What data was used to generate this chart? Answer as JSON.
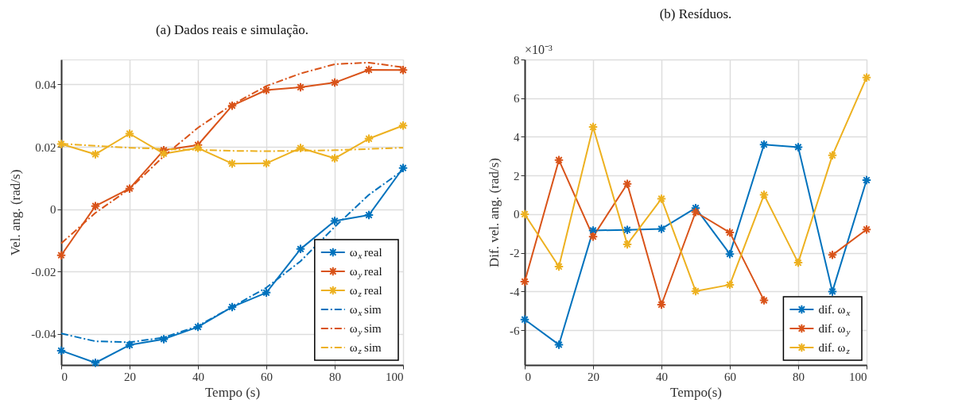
{
  "chart_data": [
    {
      "type": "line",
      "title": "(a) Dados reais e simulação.",
      "xlabel": "Tempo (s)",
      "ylabel": "Vel. ang. (rad/s)",
      "x": [
        0,
        10,
        20,
        30,
        40,
        50,
        60,
        70,
        80,
        90,
        100
      ],
      "xlim": [
        0,
        100
      ],
      "xticks": [
        0,
        20,
        40,
        60,
        80,
        100
      ],
      "ylim": [
        -0.05,
        0.048
      ],
      "yticks": [
        -0.04,
        -0.02,
        0,
        0.02,
        0.04
      ],
      "grid": true,
      "legend": "bottom right",
      "series": [
        {
          "name": "ω$_{x}$ real",
          "color": "#0072bd",
          "marker": "cross",
          "line_style": "solid",
          "values": [
            -0.0454,
            -0.0493,
            -0.0436,
            -0.0417,
            -0.0378,
            -0.0314,
            -0.0268,
            -0.0128,
            -0.0038,
            -0.0019,
            0.0132
          ]
        },
        {
          "name": "ω$_{y}$ real",
          "color": "#d95319",
          "marker": "cross",
          "line_style": "solid",
          "values": [
            -0.0148,
            0.001,
            0.0066,
            0.0189,
            0.0206,
            0.0332,
            0.0382,
            0.0391,
            0.0406,
            0.0447,
            0.0446
          ]
        },
        {
          "name": "ω$_{z}$ real",
          "color": "#edb120",
          "marker": "cross",
          "line_style": "solid",
          "values": [
            0.0209,
            0.0176,
            0.0242,
            0.0178,
            0.0196,
            0.0146,
            0.0147,
            0.0196,
            0.0163,
            0.0226,
            0.0268
          ]
        },
        {
          "name": "ω$_{x}$ sim",
          "color": "#0072bd",
          "marker": "none",
          "line_style": "dashed",
          "values": [
            -0.0399,
            -0.0424,
            -0.0427,
            -0.0412,
            -0.0375,
            -0.0314,
            -0.0252,
            -0.0167,
            -0.0057,
            0.0046,
            0.0125
          ]
        },
        {
          "name": "ω$_{y}$ sim",
          "color": "#d95319",
          "marker": "none",
          "line_style": "dashed",
          "values": [
            -0.011,
            -0.0012,
            0.0065,
            0.017,
            0.0261,
            0.0335,
            0.0395,
            0.0435,
            0.0465,
            0.047,
            0.0455
          ]
        },
        {
          "name": "ω$_{z}$ sim",
          "color": "#edb120",
          "marker": "none",
          "line_style": "dashed",
          "values": [
            0.021,
            0.0203,
            0.0197,
            0.0193,
            0.019,
            0.0187,
            0.0186,
            0.0187,
            0.0189,
            0.0193,
            0.0197
          ]
        }
      ]
    },
    {
      "type": "line",
      "title": "(b) Resíduos.",
      "xlabel": "Tempo(s)",
      "ylabel": "Dif. vel. ang. (rad/s)",
      "annotations": [
        "×10⁻³"
      ],
      "x": [
        0,
        10,
        20,
        30,
        40,
        50,
        60,
        70,
        80,
        90,
        100
      ],
      "xlim": [
        0,
        100
      ],
      "xticks": [
        0,
        20,
        40,
        60,
        80,
        100
      ],
      "ylim": [
        -7.8,
        8
      ],
      "yticks": [
        -6,
        -4,
        -2,
        0,
        2,
        4,
        6,
        8
      ],
      "grid": true,
      "legend": "bottom right",
      "series": [
        {
          "name": "dif. ω$_{x}$",
          "color": "#0072bd",
          "marker": "cross",
          "line_style": "solid",
          "values": [
            -5.45,
            -6.75,
            -0.84,
            -0.81,
            -0.76,
            0.32,
            -2.06,
            3.6,
            3.47,
            -4.0,
            1.76
          ]
        },
        {
          "name": "dif. ω$_{y}$",
          "color": "#d95319",
          "marker": "cross",
          "line_style": "solid",
          "values": [
            -3.49,
            2.8,
            -1.16,
            1.57,
            -4.68,
            0.11,
            -0.95,
            -4.46,
            null,
            -2.11,
            -0.79
          ]
        },
        {
          "name": "dif. ω$_{z}$",
          "color": "#edb120",
          "marker": "cross",
          "line_style": "solid",
          "values": [
            0,
            -2.71,
            4.51,
            -1.56,
            0.8,
            -3.98,
            -3.65,
            1.0,
            -2.51,
            3.04,
            7.07
          ]
        }
      ]
    }
  ]
}
